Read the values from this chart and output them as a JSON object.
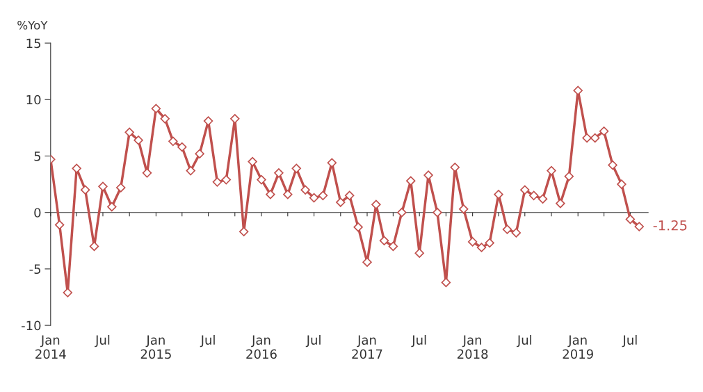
{
  "chart_data": {
    "type": "line",
    "ylabel": "%YoY",
    "x": [
      "2014-01",
      "2014-02",
      "2014-03",
      "2014-04",
      "2014-05",
      "2014-06",
      "2014-07",
      "2014-08",
      "2014-09",
      "2014-10",
      "2014-11",
      "2014-12",
      "2015-01",
      "2015-02",
      "2015-03",
      "2015-04",
      "2015-05",
      "2015-06",
      "2015-07",
      "2015-08",
      "2015-09",
      "2015-10",
      "2015-11",
      "2015-12",
      "2016-01",
      "2016-02",
      "2016-03",
      "2016-04",
      "2016-05",
      "2016-06",
      "2016-07",
      "2016-08",
      "2016-09",
      "2016-10",
      "2016-11",
      "2016-12",
      "2017-01",
      "2017-02",
      "2017-03",
      "2017-04",
      "2017-05",
      "2017-06",
      "2017-07",
      "2017-08",
      "2017-09",
      "2017-10",
      "2017-11",
      "2017-12",
      "2018-01",
      "2018-02",
      "2018-03",
      "2018-04",
      "2018-05",
      "2018-06",
      "2018-07",
      "2018-08",
      "2018-09",
      "2018-10",
      "2018-11",
      "2018-12",
      "2019-01",
      "2019-02",
      "2019-03",
      "2019-04",
      "2019-05",
      "2019-06",
      "2019-07",
      "2019-08"
    ],
    "series": [
      {
        "color": "#c0504d",
        "values": [
          4.7,
          -1.1,
          -7.1,
          3.9,
          2.0,
          -3.0,
          2.3,
          0.5,
          2.2,
          7.1,
          6.4,
          3.5,
          9.2,
          8.3,
          6.3,
          5.8,
          3.7,
          5.2,
          8.1,
          2.7,
          2.9,
          8.3,
          -1.7,
          4.5,
          2.9,
          1.6,
          3.5,
          1.6,
          3.9,
          2.0,
          1.3,
          1.5,
          4.4,
          0.9,
          1.5,
          -1.3,
          -4.4,
          0.7,
          -2.5,
          -3.0,
          0.0,
          2.8,
          -3.6,
          3.3,
          0.0,
          -6.2,
          4.0,
          0.3,
          -2.6,
          -3.1,
          -2.7,
          1.6,
          -1.5,
          -1.8,
          2.0,
          1.5,
          1.2,
          3.7,
          0.8,
          3.2,
          10.8,
          6.6,
          6.6,
          7.2,
          4.2,
          2.5,
          -0.6,
          -1.25
        ]
      }
    ],
    "ylim": [
      -10,
      15
    ],
    "yticks": [
      -10,
      -5,
      0,
      5,
      10,
      15
    ],
    "xlim": [
      "2014-01",
      "2019-09"
    ],
    "xticks": [
      {
        "value": "2014-01",
        "label": "Jan\n2014"
      },
      {
        "value": "2014-04",
        "label": null
      },
      {
        "value": "2014-07",
        "label": "Jul"
      },
      {
        "value": "2014-10",
        "label": null
      },
      {
        "value": "2015-01",
        "label": "Jan\n2015"
      },
      {
        "value": "2015-04",
        "label": null
      },
      {
        "value": "2015-07",
        "label": "Jul"
      },
      {
        "value": "2015-10",
        "label": null
      },
      {
        "value": "2016-01",
        "label": "Jan\n2016"
      },
      {
        "value": "2016-04",
        "label": null
      },
      {
        "value": "2016-07",
        "label": "Jul"
      },
      {
        "value": "2016-10",
        "label": null
      },
      {
        "value": "2017-01",
        "label": "Jan\n2017"
      },
      {
        "value": "2017-04",
        "label": null
      },
      {
        "value": "2017-07",
        "label": "Jul"
      },
      {
        "value": "2017-10",
        "label": null
      },
      {
        "value": "2018-01",
        "label": "Jan\n2018"
      },
      {
        "value": "2018-04",
        "label": null
      },
      {
        "value": "2018-07",
        "label": "Jul"
      },
      {
        "value": "2018-10",
        "label": null
      },
      {
        "value": "2019-01",
        "label": "Jan\n2019"
      },
      {
        "value": "2019-04",
        "label": null
      },
      {
        "value": "2019-07",
        "label": "Jul"
      }
    ],
    "annotations": [
      {
        "text": "-1.25",
        "x": "2019-08",
        "y": -1.25
      }
    ],
    "marker": "diamond",
    "line_style": "solid",
    "legend": false
  }
}
